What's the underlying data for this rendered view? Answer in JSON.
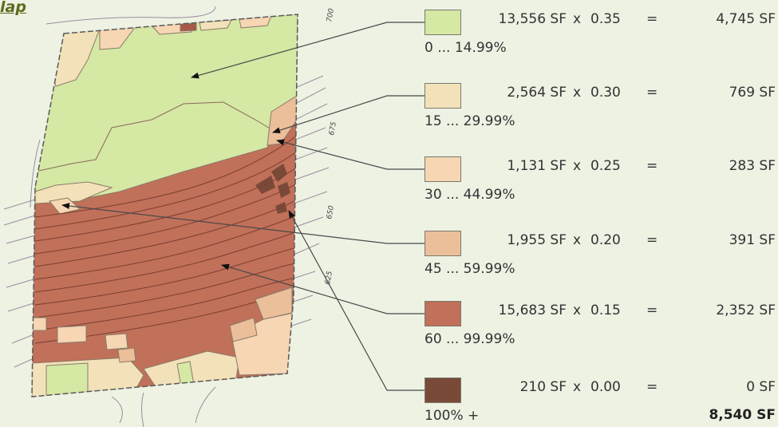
{
  "title": "lap",
  "contour_labels": [
    "700",
    "675",
    "650",
    "625"
  ],
  "legend": [
    {
      "area": "13,556 SF",
      "x": "x",
      "coefficient": "0.35",
      "eq": "=",
      "result": "4,745 SF",
      "range": "0 ... 14.99%",
      "color": "#d5e8a4"
    },
    {
      "area": "2,564 SF",
      "x": "x",
      "coefficient": "0.30",
      "eq": "=",
      "result": "769 SF",
      "range": "15 ... 29.99%",
      "color": "#f3e2b9"
    },
    {
      "area": "1,131 SF",
      "x": "x",
      "coefficient": "0.25",
      "eq": "=",
      "result": "283 SF",
      "range": "30 ... 44.99%",
      "color": "#f6d6b3"
    },
    {
      "area": "1,955 SF",
      "x": "x",
      "coefficient": "0.20",
      "eq": "=",
      "result": "391 SF",
      "range": "45 ... 59.99%",
      "color": "#ebbf9a"
    },
    {
      "area": "15,683 SF",
      "x": "x",
      "coefficient": "0.15",
      "eq": "=",
      "result": "2,352 SF",
      "range": "60 ... 99.99%",
      "color": "#c1705a"
    },
    {
      "area": "210 SF",
      "x": "x",
      "coefficient": "0.00",
      "eq": "=",
      "result": "0 SF",
      "range": "100% +",
      "color": "#7a4a38"
    }
  ],
  "total": "8,540 SF"
}
